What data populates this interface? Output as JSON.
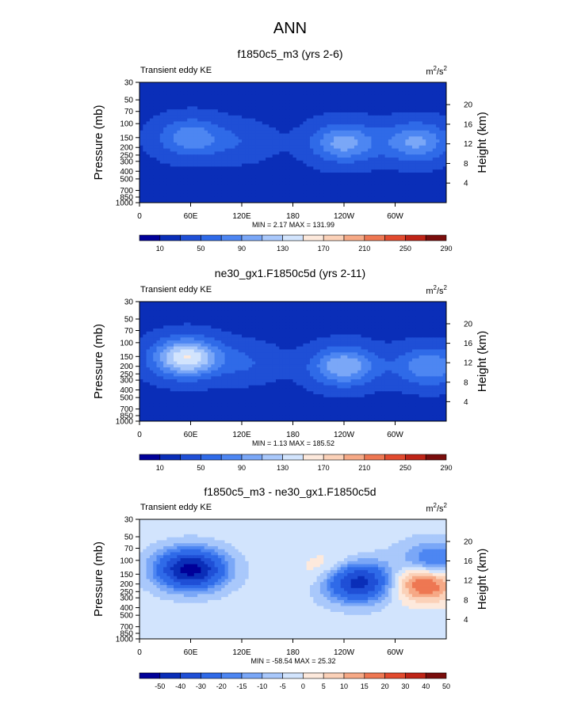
{
  "page_title": "ANN",
  "colors": {
    "blue_scale": [
      "#000099",
      "#0a2eb8",
      "#1f4fd6",
      "#2f6ae8",
      "#4d86f2",
      "#7aa7f7",
      "#a9c8fb",
      "#d2e4fd",
      "#fde9dc",
      "#fbd1b8",
      "#f6a986",
      "#ee7752",
      "#e24a2e",
      "#bf2417",
      "#7a0d0c"
    ],
    "diff_scale": [
      "#000099",
      "#0a2eb8",
      "#1f4fd6",
      "#2f6ae8",
      "#4d86f2",
      "#7aa7f7",
      "#a9c8fb",
      "#d2e4fd",
      "#fde9dc",
      "#fbd1b8",
      "#f6a986",
      "#ee7752",
      "#e24a2e",
      "#bf2417",
      "#7a0d0c"
    ]
  },
  "chart_data": [
    {
      "type": "heatmap",
      "title": "f1850c5_m3 (yrs 2-6)",
      "left_label": "Transient eddy KE",
      "units_base": "m",
      "units_exp1": "2",
      "units_mid": "/s",
      "units_exp2": "2",
      "ylabel": "Pressure (mb)",
      "ylabel_right": "Height (km)",
      "x_ticks": [
        "0",
        "60E",
        "120E",
        "180",
        "120W",
        "60W"
      ],
      "x_tick_values": [
        0,
        60,
        120,
        180,
        240,
        300
      ],
      "xlim": [
        0,
        360
      ],
      "y_ticks": [
        "30",
        "50",
        "70",
        "100",
        "150",
        "200",
        "250",
        "300",
        "400",
        "500",
        "700",
        "850",
        "1000"
      ],
      "y_tick_values": [
        30,
        50,
        70,
        100,
        150,
        200,
        250,
        300,
        400,
        500,
        700,
        850,
        1000
      ],
      "ylim": [
        30,
        1000
      ],
      "height_ticks": [
        "20",
        "16",
        "12",
        "8",
        "4"
      ],
      "height_values": [
        20,
        16,
        12,
        8,
        4
      ],
      "stats": "MIN =   2.17  MAX = 131.99",
      "colorbar_labels": [
        "10",
        "50",
        "90",
        "130",
        "170",
        "210",
        "250",
        "290"
      ],
      "colorbar_levels": [
        10,
        30,
        50,
        70,
        90,
        110,
        130,
        150,
        170,
        190,
        210,
        230,
        250,
        270,
        290
      ],
      "blobs": [
        {
          "lon": 60,
          "p": 150,
          "value": 85
        },
        {
          "lon": 240,
          "p": 175,
          "value": 100
        },
        {
          "lon": 325,
          "p": 170,
          "value": 95
        },
        {
          "lon": 120,
          "p": 170,
          "value": 45
        }
      ],
      "baseline": 25,
      "min": 2.17,
      "max": 131.99
    },
    {
      "type": "heatmap",
      "title": "ne30_gx1.F1850c5d (yrs 2-11)",
      "left_label": "Transient eddy KE",
      "units_base": "m",
      "units_exp1": "2",
      "units_mid": "/s",
      "units_exp2": "2",
      "ylabel": "Pressure (mb)",
      "ylabel_right": "Height (km)",
      "x_ticks": [
        "0",
        "60E",
        "120E",
        "180",
        "120W",
        "60W"
      ],
      "x_tick_values": [
        0,
        60,
        120,
        180,
        240,
        300
      ],
      "xlim": [
        0,
        360
      ],
      "y_ticks": [
        "30",
        "50",
        "70",
        "100",
        "150",
        "200",
        "250",
        "300",
        "400",
        "500",
        "700",
        "850",
        "1000"
      ],
      "y_tick_values": [
        30,
        50,
        70,
        100,
        150,
        200,
        250,
        300,
        400,
        500,
        700,
        850,
        1000
      ],
      "ylim": [
        30,
        1000
      ],
      "height_ticks": [
        "20",
        "16",
        "12",
        "8",
        "4"
      ],
      "height_values": [
        20,
        16,
        12,
        8,
        4
      ],
      "stats": "MIN =   1.13  MAX = 185.52",
      "colorbar_labels": [
        "10",
        "50",
        "90",
        "130",
        "170",
        "210",
        "250",
        "290"
      ],
      "colorbar_levels": [
        10,
        30,
        50,
        70,
        90,
        110,
        130,
        150,
        170,
        190,
        210,
        230,
        250,
        270,
        290
      ],
      "blobs": [
        {
          "lon": 55,
          "p": 155,
          "value": 150
        },
        {
          "lon": 240,
          "p": 200,
          "value": 110
        },
        {
          "lon": 340,
          "p": 200,
          "value": 90
        },
        {
          "lon": 125,
          "p": 180,
          "value": 50
        }
      ],
      "baseline": 25,
      "min": 1.13,
      "max": 185.52
    },
    {
      "type": "heatmap",
      "title": "f1850c5_m3 - ne30_gx1.F1850c5d",
      "left_label": "Transient eddy KE",
      "units_base": "m",
      "units_exp1": "2",
      "units_mid": "/s",
      "units_exp2": "2",
      "ylabel": "Pressure (mb)",
      "ylabel_right": "Height (km)",
      "x_ticks": [
        "0",
        "60E",
        "120E",
        "180",
        "120W",
        "60W"
      ],
      "x_tick_values": [
        0,
        60,
        120,
        180,
        240,
        300
      ],
      "xlim": [
        0,
        360
      ],
      "y_ticks": [
        "30",
        "50",
        "70",
        "100",
        "150",
        "200",
        "250",
        "300",
        "400",
        "500",
        "700",
        "850",
        "1000"
      ],
      "y_tick_values": [
        30,
        50,
        70,
        100,
        150,
        200,
        250,
        300,
        400,
        500,
        700,
        850,
        1000
      ],
      "ylim": [
        30,
        1000
      ],
      "height_ticks": [
        "20",
        "16",
        "12",
        "8",
        "4"
      ],
      "height_values": [
        20,
        16,
        12,
        8,
        4
      ],
      "stats": "MIN = -58.54  MAX =  25.32",
      "colorbar_labels": [
        "-50",
        "-40",
        "-30",
        "-20",
        "-15",
        "-10",
        "-5",
        "0",
        "5",
        "10",
        "15",
        "20",
        "30",
        "40",
        "50"
      ],
      "colorbar_levels": [
        -50,
        -40,
        -30,
        -20,
        -15,
        -10,
        -5,
        0,
        5,
        10,
        15,
        20,
        30,
        40,
        50
      ],
      "blobs": [
        {
          "lon": 60,
          "p": 130,
          "value": -55
        },
        {
          "lon": 255,
          "p": 185,
          "value": -50
        },
        {
          "lon": 335,
          "p": 190,
          "value": 25
        },
        {
          "lon": 230,
          "p": 140,
          "value": 10
        },
        {
          "lon": 345,
          "p": 105,
          "value": -25
        }
      ],
      "baseline": -3,
      "min": -58.54,
      "max": 25.32
    }
  ]
}
